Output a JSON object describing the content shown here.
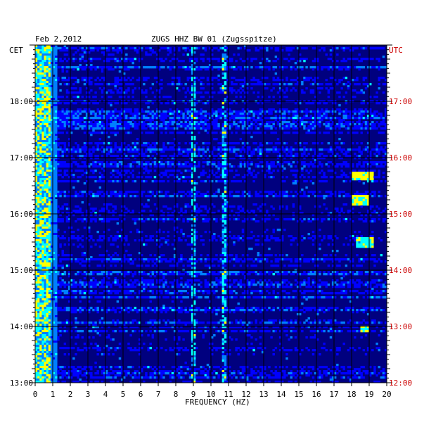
{
  "chart_data": {
    "type": "heatmap",
    "title_date": "Feb 2,2012",
    "title_station": "ZUGS HHZ BW 01 (Zugsspitze)",
    "xlabel": "FREQUENCY (HZ)",
    "left_axis_label": "CET",
    "right_axis_label": "UTC",
    "x_range": [
      0,
      20
    ],
    "x_ticks": [
      "0",
      "1",
      "2",
      "3",
      "4",
      "5",
      "6",
      "7",
      "8",
      "9",
      "10",
      "11",
      "12",
      "13",
      "14",
      "15",
      "16",
      "17",
      "18",
      "19",
      "20"
    ],
    "y_range_cet": [
      "13:00",
      "18:59"
    ],
    "cet_ticks": [
      "18:00",
      "17:00",
      "16:00",
      "15:00",
      "14:00",
      "13:00"
    ],
    "utc_ticks": [
      "17:00",
      "16:00",
      "15:00",
      "14:00",
      "13:00",
      "12:00"
    ],
    "grid": true,
    "colormap": [
      "#00007f",
      "#0000ff",
      "#0080ff",
      "#00ffff",
      "#ffff00",
      "#ff0000"
    ],
    "features": [
      {
        "desc": "strong low-frequency band",
        "freq_hz": [
          0.1,
          0.7
        ],
        "intensity": "high"
      },
      {
        "desc": "persistent line",
        "freq_hz": 9.0,
        "intensity": "medium"
      },
      {
        "desc": "persistent line",
        "freq_hz": 10.7,
        "intensity": "medium"
      },
      {
        "desc": "burst",
        "freq_hz": [
          18.0,
          19.2
        ],
        "cet": [
          "16:35",
          "16:45"
        ],
        "intensity": "high"
      },
      {
        "desc": "burst",
        "freq_hz": [
          18.0,
          19.0
        ],
        "cet": [
          "16:10",
          "16:20"
        ],
        "intensity": "high"
      },
      {
        "desc": "burst",
        "freq_hz": [
          18.2,
          19.2
        ],
        "cet": [
          "15:25",
          "15:35"
        ],
        "intensity": "medium"
      },
      {
        "desc": "burst",
        "freq_hz": [
          18.5,
          19.0
        ],
        "cet": [
          "13:55",
          "14:00"
        ],
        "intensity": "medium"
      }
    ]
  }
}
